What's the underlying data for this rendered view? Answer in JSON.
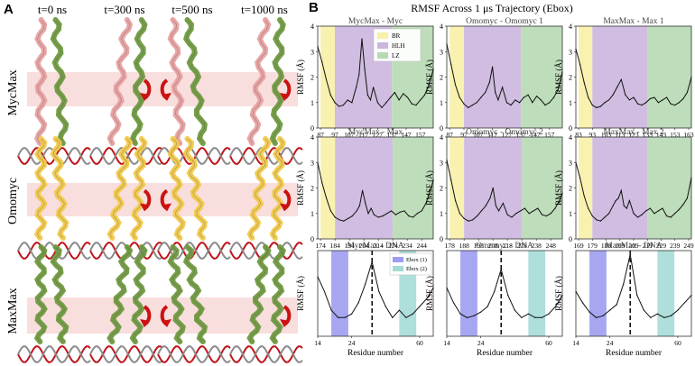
{
  "panel_a": {
    "label": "A",
    "time_labels": [
      "t=0 ns",
      "t=300 ns",
      "t=500 ns",
      "t=1000 ns"
    ],
    "row_labels": [
      "MycMax",
      "Omomyc",
      "MaxMax"
    ],
    "colors": {
      "myc": "#e8a0a0",
      "max": "#6f9a3e",
      "omomyc": "#f1c94a",
      "dna_red": "#c0141a",
      "dna_gray": "#8a8a8a",
      "band": "#f7d6d6",
      "arrow": "#cc1111"
    }
  },
  "panel_b": {
    "label": "B",
    "title": "RMSF Across 1 μs Trajectory (Ebox)",
    "region_colors": {
      "BR": "#f7f0a6",
      "HLH": "#cbb6de",
      "LZ": "#b7d9b3",
      "Ebox1": "#9c9cf0",
      "Ebox2": "#a5dbd7"
    },
    "legend_top": [
      "BR",
      "HLH",
      "LZ"
    ],
    "legend_dna": [
      "Ebox (1)",
      "Ebox (2)"
    ],
    "ylabel": "RMSF (Å)",
    "xlabel": "Residue number"
  },
  "chart_data": [
    {
      "type": "line",
      "title": "MycMax - Myc",
      "ylabel": "RMSF (Å)",
      "ylim": [
        0,
        4
      ],
      "yticks": [
        0,
        1,
        2,
        3,
        4
      ],
      "xticks": [
        87,
        97,
        107,
        117,
        127,
        137,
        147,
        157
      ],
      "xlim": [
        85,
        166
      ],
      "regions": [
        {
          "name": "BR",
          "from": 87,
          "to": 97
        },
        {
          "name": "HLH",
          "from": 97,
          "to": 137
        },
        {
          "name": "LZ",
          "from": 137,
          "to": 166
        }
      ],
      "x": [
        85,
        88,
        91,
        94,
        97,
        100,
        103,
        106,
        109,
        112,
        114,
        116,
        118,
        120,
        122,
        124,
        127,
        130,
        133,
        136,
        139,
        142,
        145,
        148,
        151,
        154,
        157,
        160,
        163,
        166
      ],
      "y": [
        3.2,
        2.6,
        1.9,
        1.3,
        1.0,
        0.85,
        0.9,
        1.1,
        1.0,
        1.6,
        2.1,
        3.5,
        2.3,
        1.3,
        1.1,
        1.6,
        1.0,
        0.8,
        1.0,
        1.2,
        1.4,
        1.1,
        1.35,
        1.2,
        0.95,
        0.9,
        1.1,
        1.3,
        1.7,
        2.3
      ]
    },
    {
      "type": "line",
      "title": "Omomyc - Omomyc 1",
      "ylabel": "RMSF (Å)",
      "ylim": [
        0,
        4
      ],
      "yticks": [
        0,
        1,
        2,
        3,
        4
      ],
      "xticks": [
        87,
        97,
        107,
        117,
        127,
        137,
        147,
        157
      ],
      "xlim": [
        85,
        166
      ],
      "regions": [
        {
          "name": "BR",
          "from": 87,
          "to": 97
        },
        {
          "name": "HLH",
          "from": 97,
          "to": 137
        },
        {
          "name": "LZ",
          "from": 137,
          "to": 166
        }
      ],
      "x": [
        85,
        88,
        91,
        94,
        97,
        100,
        103,
        106,
        109,
        112,
        115,
        117,
        119,
        121,
        124,
        127,
        130,
        133,
        136,
        139,
        142,
        145,
        148,
        151,
        154,
        157,
        160,
        163,
        166
      ],
      "y": [
        3.3,
        2.5,
        1.7,
        1.2,
        0.95,
        0.8,
        0.9,
        1.0,
        1.2,
        1.4,
        1.8,
        2.4,
        1.4,
        1.1,
        1.6,
        1.0,
        0.9,
        1.1,
        1.0,
        1.2,
        1.3,
        1.0,
        1.25,
        1.1,
        0.9,
        1.0,
        1.2,
        1.5,
        2.2
      ]
    },
    {
      "type": "line",
      "title": "MaxMax - Max 1",
      "ylabel": "RMSF (Å)",
      "ylim": [
        0,
        4
      ],
      "yticks": [
        0,
        1,
        2,
        3,
        4
      ],
      "xticks": [
        83,
        93,
        103,
        113,
        123,
        133,
        143,
        153,
        163
      ],
      "xlim": [
        81,
        165
      ],
      "regions": [
        {
          "name": "BR",
          "from": 83,
          "to": 93
        },
        {
          "name": "HLH",
          "from": 93,
          "to": 133
        },
        {
          "name": "LZ",
          "from": 133,
          "to": 165
        }
      ],
      "x": [
        81,
        84,
        87,
        90,
        93,
        96,
        99,
        102,
        105,
        108,
        111,
        114,
        117,
        120,
        123,
        126,
        129,
        132,
        135,
        138,
        141,
        144,
        147,
        150,
        153,
        156,
        159,
        162,
        165
      ],
      "y": [
        3.1,
        2.5,
        1.8,
        1.2,
        0.9,
        0.8,
        0.85,
        1.0,
        1.1,
        1.3,
        1.6,
        1.9,
        1.3,
        1.1,
        1.2,
        0.95,
        0.9,
        1.0,
        1.15,
        1.2,
        1.0,
        1.1,
        1.2,
        0.95,
        0.9,
        1.0,
        1.15,
        1.4,
        2.0
      ]
    },
    {
      "type": "line",
      "title": "MycMax - Max",
      "ylabel": "RMSF (Å)",
      "ylim": [
        0,
        4
      ],
      "yticks": [
        0,
        1,
        2,
        3,
        4
      ],
      "xticks": [
        174,
        184,
        194,
        204,
        214,
        224,
        234,
        244
      ],
      "xlim": [
        172,
        252
      ],
      "regions": [
        {
          "name": "BR",
          "from": 174,
          "to": 184
        },
        {
          "name": "HLH",
          "from": 184,
          "to": 224
        },
        {
          "name": "LZ",
          "from": 224,
          "to": 252
        }
      ],
      "x": [
        172,
        175,
        178,
        181,
        184,
        187,
        190,
        193,
        196,
        199,
        201,
        203,
        205,
        207,
        209,
        211,
        214,
        217,
        220,
        223,
        226,
        229,
        232,
        235,
        238,
        241,
        244,
        247,
        250,
        252
      ],
      "y": [
        3.0,
        2.2,
        1.6,
        1.1,
        0.85,
        0.75,
        0.7,
        0.8,
        0.9,
        1.1,
        1.3,
        1.9,
        1.4,
        1.0,
        1.2,
        0.95,
        0.85,
        0.9,
        1.0,
        1.1,
        0.95,
        1.05,
        1.1,
        0.9,
        0.85,
        1.0,
        1.1,
        1.4,
        1.9,
        2.3
      ]
    },
    {
      "type": "line",
      "title": "Omomyc - Omomyc 2",
      "ylabel": "RMSF (Å)",
      "ylim": [
        0,
        4
      ],
      "yticks": [
        0,
        1,
        2,
        3,
        4
      ],
      "xticks": [
        178,
        188,
        198,
        208,
        218,
        228,
        238,
        248
      ],
      "xlim": [
        176,
        256
      ],
      "regions": [
        {
          "name": "BR",
          "from": 178,
          "to": 188
        },
        {
          "name": "HLH",
          "from": 188,
          "to": 228
        },
        {
          "name": "LZ",
          "from": 228,
          "to": 256
        }
      ],
      "x": [
        176,
        179,
        182,
        185,
        188,
        191,
        194,
        197,
        200,
        203,
        206,
        208,
        210,
        212,
        215,
        218,
        221,
        224,
        227,
        230,
        233,
        236,
        239,
        242,
        245,
        248,
        251,
        254,
        256
      ],
      "y": [
        3.1,
        2.3,
        1.5,
        1.0,
        0.8,
        0.7,
        0.75,
        0.9,
        1.1,
        1.3,
        1.6,
        2.0,
        1.3,
        1.1,
        1.4,
        0.95,
        0.85,
        1.0,
        1.1,
        1.2,
        1.0,
        1.1,
        1.2,
        0.95,
        0.9,
        1.0,
        1.2,
        1.5,
        1.8
      ]
    },
    {
      "type": "line",
      "title": "MaxMax - Max 2",
      "ylabel": "RMSF (Å)",
      "ylim": [
        0,
        4
      ],
      "yticks": [
        0,
        1,
        2,
        3,
        4
      ],
      "xticks": [
        169,
        179,
        189,
        199,
        209,
        219,
        229,
        239,
        249
      ],
      "xlim": [
        167,
        251
      ],
      "regions": [
        {
          "name": "BR",
          "from": 169,
          "to": 179
        },
        {
          "name": "HLH",
          "from": 179,
          "to": 219
        },
        {
          "name": "LZ",
          "from": 219,
          "to": 251
        }
      ],
      "x": [
        167,
        170,
        173,
        176,
        179,
        182,
        185,
        188,
        191,
        194,
        196,
        198,
        200,
        202,
        204,
        206,
        209,
        212,
        215,
        218,
        221,
        224,
        227,
        230,
        233,
        236,
        239,
        242,
        245,
        248,
        251
      ],
      "y": [
        3.0,
        2.4,
        1.7,
        1.2,
        0.9,
        0.75,
        0.7,
        0.85,
        1.0,
        1.3,
        1.5,
        1.6,
        1.9,
        1.3,
        1.2,
        1.5,
        1.0,
        0.85,
        0.95,
        1.1,
        1.2,
        1.0,
        1.1,
        1.2,
        0.9,
        0.85,
        1.0,
        1.15,
        1.35,
        1.6,
        2.4
      ]
    },
    {
      "type": "line",
      "title": "MycMax - DNA",
      "ylabel": "RMSF (Å)",
      "xlabel": "Residue number",
      "ylim": [
        0.5,
        2.8
      ],
      "xticks": [
        14,
        24,
        60
      ],
      "xtick_pos": [
        14,
        24,
        44
      ],
      "xlim": [
        14,
        48
      ],
      "regions": [
        {
          "name": "Ebox1",
          "from": 18,
          "to": 23
        },
        {
          "name": "Ebox2",
          "from": 38,
          "to": 43
        }
      ],
      "vline": 30,
      "x": [
        14,
        16,
        18,
        20,
        22,
        24,
        26,
        28,
        30,
        32,
        34,
        36,
        38,
        40,
        42,
        44,
        46,
        48
      ],
      "y": [
        2.1,
        1.7,
        1.2,
        1.0,
        1.0,
        1.1,
        1.4,
        1.9,
        2.5,
        1.7,
        1.3,
        1.0,
        1.2,
        1.0,
        1.1,
        1.3,
        1.5,
        1.8
      ]
    },
    {
      "type": "line",
      "title": "Omomyc - DNA",
      "ylabel": "RMSF (Å)",
      "xlabel": "Residue number",
      "ylim": [
        0.5,
        2.8
      ],
      "xticks": [
        14,
        24,
        60
      ],
      "xtick_pos": [
        14,
        24,
        44
      ],
      "xlim": [
        14,
        48
      ],
      "regions": [
        {
          "name": "Ebox1",
          "from": 18,
          "to": 23
        },
        {
          "name": "Ebox2",
          "from": 38,
          "to": 43
        }
      ],
      "vline": 30,
      "x": [
        14,
        16,
        18,
        20,
        22,
        24,
        26,
        28,
        30,
        32,
        34,
        36,
        38,
        40,
        42,
        44,
        46,
        48
      ],
      "y": [
        1.8,
        1.4,
        1.1,
        1.0,
        1.05,
        1.15,
        1.3,
        1.7,
        2.3,
        1.6,
        1.2,
        1.0,
        1.1,
        1.0,
        1.0,
        1.1,
        1.3,
        1.6
      ]
    },
    {
      "type": "line",
      "title": "MaxMax - DNA",
      "ylabel": "RMSF (Å)",
      "xlabel": "Residue number",
      "ylim": [
        0.5,
        2.8
      ],
      "xticks": [
        14,
        24,
        60
      ],
      "xtick_pos": [
        14,
        24,
        44
      ],
      "xlim": [
        14,
        48
      ],
      "regions": [
        {
          "name": "Ebox1",
          "from": 18,
          "to": 23
        },
        {
          "name": "Ebox2",
          "from": 38,
          "to": 43
        }
      ],
      "vline": 30,
      "x": [
        14,
        16,
        18,
        20,
        22,
        24,
        26,
        28,
        30,
        32,
        34,
        36,
        38,
        40,
        42,
        44,
        46,
        48
      ],
      "y": [
        1.7,
        1.4,
        1.15,
        1.0,
        1.05,
        1.2,
        1.35,
        1.9,
        2.7,
        1.6,
        1.2,
        1.0,
        1.1,
        1.0,
        1.05,
        1.2,
        1.4,
        1.6
      ]
    }
  ]
}
